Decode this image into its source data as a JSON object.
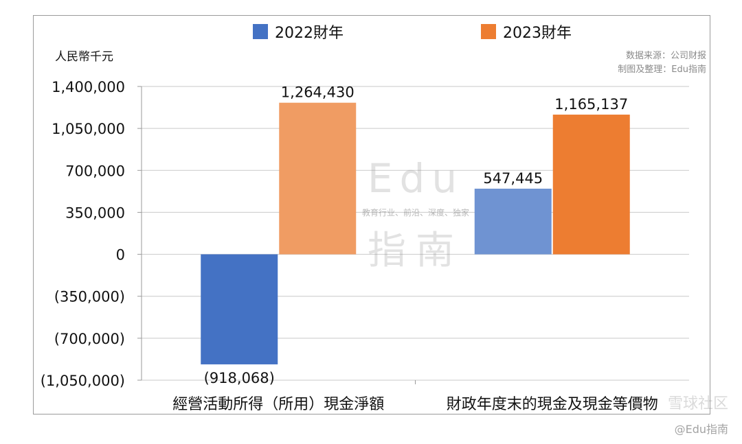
{
  "unit_label": "人民幣千元",
  "source_lines": [
    "数据来源：公司财报",
    "制图及整理：Edu指南"
  ],
  "watermark": {
    "logo_top": "Edu",
    "tagline": "教育行业、前沿、深度、独家",
    "logo_bottom": "指南",
    "credit_1": "雪球社区",
    "credit_2": "@Edu指南"
  },
  "colors": {
    "2022_negative": "#4472c4",
    "2022_positive": "#6f93d2",
    "2023_light": "#f09c63",
    "2023_dark": "#ed7d31"
  },
  "chart_data": {
    "type": "bar",
    "title": "",
    "categories": [
      "經營活動所得（所用）現金淨額",
      "財政年度末的現金及現金等價物"
    ],
    "series": [
      {
        "name": "2022財年",
        "values": [
          -918068,
          547445
        ],
        "color": "#4472c4"
      },
      {
        "name": "2023財年",
        "values": [
          1264430,
          1165137
        ],
        "color": "#ed7d31"
      }
    ],
    "data_labels": [
      [
        "(918,068)",
        "547,445"
      ],
      [
        "1,264,430",
        "1,165,137"
      ]
    ],
    "ylabel": "人民幣千元",
    "ylim": [
      -1050000,
      1400000
    ],
    "yticks": [
      1400000,
      1050000,
      700000,
      350000,
      0,
      -350000,
      -700000,
      -1050000
    ],
    "ytick_labels": [
      "1,400,000",
      "1,050,000",
      "700,000",
      "350,000",
      "0",
      "(350,000)",
      "(700,000)",
      "(1,050,000)"
    ],
    "grid": true,
    "legend_position": "top"
  }
}
